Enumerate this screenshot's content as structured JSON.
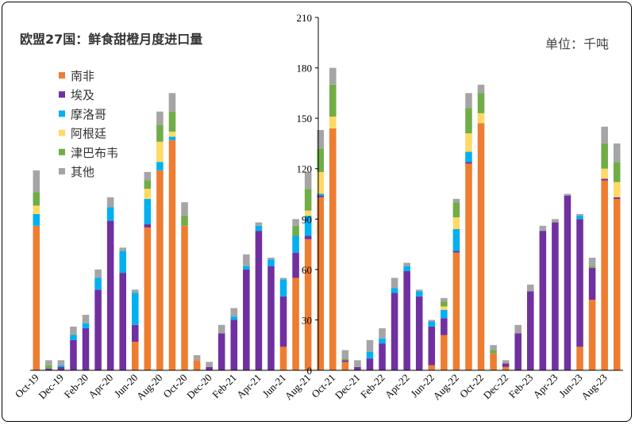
{
  "chart_data": {
    "type": "bar",
    "stacked": true,
    "title": "欧盟27国：鲜食甜橙月度进口量",
    "unit_label": "单位：千吨",
    "ylim": [
      0,
      210
    ],
    "yticks": [
      0,
      30,
      60,
      90,
      120,
      150,
      180,
      210
    ],
    "categories": [
      "Oct-19",
      "Nov-19",
      "Dec-19",
      "Jan-20",
      "Feb-20",
      "Mar-20",
      "Apr-20",
      "May-20",
      "Jun-20",
      "Jul-20",
      "Aug-20",
      "Sep-20",
      "Oct-20",
      "Nov-20",
      "Dec-20",
      "Jan-21",
      "Feb-21",
      "Mar-21",
      "Apr-21",
      "May-21",
      "Jun-21",
      "Jul-21",
      "Aug-21",
      "Sep-21",
      "Oct-21",
      "Nov-21",
      "Dec-21",
      "Jan-22",
      "Feb-22",
      "Mar-22",
      "Apr-22",
      "May-22",
      "Jun-22",
      "Jul-22",
      "Aug-22",
      "Sep-22",
      "Oct-22",
      "Nov-22",
      "Dec-22",
      "Jan-23",
      "Feb-23",
      "Mar-23",
      "Apr-23",
      "May-23",
      "Jun-23",
      "Jul-23",
      "Aug-23",
      "Sep-23"
    ],
    "xtick_labels": [
      "Oct-19",
      "Dec-19",
      "Feb-20",
      "Apr-20",
      "Jun-20",
      "Aug-20",
      "Oct-20",
      "Dec-20",
      "Feb-21",
      "Apr-21",
      "Jun-21",
      "Aug-21",
      "Oct-21",
      "Dec-21",
      "Feb-22",
      "Apr-22",
      "Jun-22",
      "Aug-22",
      "Oct-22",
      "Dec-22",
      "Feb-23",
      "Apr-23",
      "Jun-23",
      "Aug-23"
    ],
    "series": [
      {
        "name": "南非",
        "color": "#ED7D31",
        "values": [
          86,
          0,
          0,
          0,
          0,
          0,
          0,
          0,
          17,
          85,
          119,
          137,
          86,
          6,
          0,
          0,
          0,
          0,
          0,
          0,
          14,
          55,
          78,
          103,
          144,
          5,
          0,
          0,
          0,
          0,
          0,
          0,
          3,
          21,
          70,
          123,
          147,
          10,
          2,
          0,
          0,
          0,
          0,
          0,
          14,
          42,
          113,
          102
        ]
      },
      {
        "name": "埃及",
        "color": "#7030A0",
        "values": [
          0,
          1,
          2,
          18,
          25,
          48,
          89,
          58,
          10,
          2,
          0,
          0,
          0,
          0,
          2,
          22,
          30,
          60,
          83,
          62,
          30,
          15,
          2,
          1,
          0,
          1,
          2,
          7,
          16,
          46,
          59,
          44,
          23,
          10,
          1,
          1,
          0,
          0,
          2,
          22,
          47,
          83,
          88,
          104,
          76,
          19,
          1,
          1
        ]
      },
      {
        "name": "摩洛哥",
        "color": "#00B0F0",
        "values": [
          7,
          0,
          1,
          3,
          3,
          7,
          8,
          13,
          19,
          15,
          5,
          2,
          0,
          0,
          0,
          0,
          2,
          2,
          3,
          4,
          10,
          10,
          12,
          1,
          0,
          0,
          0,
          4,
          3,
          3,
          3,
          3,
          3,
          5,
          13,
          6,
          0,
          0,
          0,
          0,
          0,
          0,
          0,
          0,
          2,
          0,
          0,
          0
        ]
      },
      {
        "name": "阿根廷",
        "color": "#FFD966",
        "values": [
          5,
          0,
          0,
          0,
          0,
          0,
          0,
          0,
          0,
          6,
          12,
          3,
          0,
          0,
          0,
          0,
          0,
          0,
          0,
          0,
          0,
          0,
          3,
          13,
          7,
          0,
          0,
          0,
          0,
          0,
          0,
          0,
          0,
          2,
          7,
          11,
          6,
          0,
          0,
          0,
          0,
          0,
          0,
          0,
          0,
          0,
          6,
          9
        ]
      },
      {
        "name": "津巴布韦",
        "color": "#70AD47",
        "values": [
          8,
          2,
          0,
          0,
          0,
          0,
          0,
          0,
          0,
          5,
          10,
          12,
          6,
          0,
          0,
          0,
          0,
          0,
          0,
          0,
          0,
          6,
          13,
          14,
          19,
          1,
          0,
          0,
          0,
          0,
          0,
          0,
          0,
          3,
          9,
          15,
          12,
          2,
          0,
          0,
          0,
          0,
          0,
          0,
          0,
          1,
          15,
          12
        ]
      },
      {
        "name": "其他",
        "color": "#A5A5A5",
        "values": [
          13,
          3,
          3,
          5,
          5,
          5,
          6,
          2,
          2,
          5,
          8,
          11,
          8,
          3,
          3,
          5,
          5,
          7,
          2,
          1,
          1,
          4,
          10,
          11,
          10,
          5,
          4,
          7,
          6,
          6,
          2,
          1,
          1,
          2,
          2,
          9,
          5,
          3,
          2,
          5,
          4,
          3,
          2,
          1,
          1,
          5,
          10,
          11
        ]
      }
    ],
    "legend_position": "top-left",
    "grid": false
  }
}
